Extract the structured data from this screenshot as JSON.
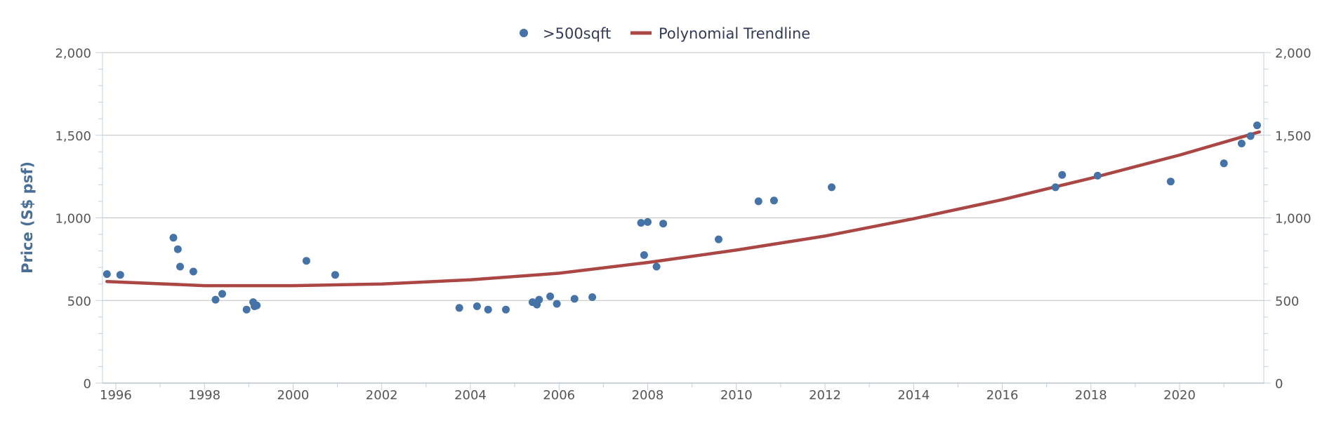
{
  "chart_data": {
    "type": "scatter",
    "title": "",
    "xlabel": "",
    "ylabel": "Price (S$ psf)",
    "xlim": [
      1995.7,
      2021.9
    ],
    "ylim": [
      0,
      2000
    ],
    "y_ticks": [
      0,
      500,
      1000,
      1500,
      2000
    ],
    "y_tick_labels": [
      "0",
      "500",
      "1,000",
      "1,500",
      "2,000"
    ],
    "x_ticks": [
      1996,
      1998,
      2000,
      2002,
      2004,
      2006,
      2008,
      2010,
      2012,
      2014,
      2016,
      2018,
      2020
    ],
    "x_tick_labels": [
      "1996",
      "1998",
      "2000",
      "2002",
      "2004",
      "2006",
      "2008",
      "2010",
      "2012",
      "2014",
      "2016",
      "2018",
      "2020"
    ],
    "secondary_y_axis": true,
    "grid": "horizontal",
    "legend_position": "top-center",
    "colors": {
      "points": "#4572a7",
      "trendline": "#aa4643",
      "axis": "#c0d0e0",
      "grid": "#c0c0c0"
    },
    "series": [
      {
        "name": ">500sqft",
        "kind": "scatter",
        "points": [
          [
            1995.8,
            660
          ],
          [
            1996.1,
            655
          ],
          [
            1997.3,
            880
          ],
          [
            1997.4,
            810
          ],
          [
            1997.45,
            705
          ],
          [
            1997.75,
            675
          ],
          [
            1998.25,
            505
          ],
          [
            1998.4,
            540
          ],
          [
            1998.95,
            445
          ],
          [
            1999.1,
            490
          ],
          [
            1999.13,
            465
          ],
          [
            1999.18,
            470
          ],
          [
            2000.3,
            740
          ],
          [
            2000.95,
            655
          ],
          [
            2003.75,
            455
          ],
          [
            2004.15,
            465
          ],
          [
            2004.4,
            445
          ],
          [
            2004.8,
            445
          ],
          [
            2005.4,
            490
          ],
          [
            2005.5,
            475
          ],
          [
            2005.55,
            505
          ],
          [
            2005.8,
            525
          ],
          [
            2005.95,
            480
          ],
          [
            2006.35,
            510
          ],
          [
            2006.75,
            520
          ],
          [
            2007.85,
            970
          ],
          [
            2007.92,
            775
          ],
          [
            2008.0,
            975
          ],
          [
            2008.2,
            705
          ],
          [
            2008.35,
            965
          ],
          [
            2009.6,
            870
          ],
          [
            2010.5,
            1100
          ],
          [
            2010.85,
            1105
          ],
          [
            2012.15,
            1185
          ],
          [
            2017.2,
            1185
          ],
          [
            2017.35,
            1260
          ],
          [
            2018.15,
            1255
          ],
          [
            2019.8,
            1220
          ],
          [
            2021.0,
            1330
          ],
          [
            2021.4,
            1450
          ],
          [
            2021.6,
            1495
          ],
          [
            2021.75,
            1560
          ]
        ]
      },
      {
        "name": "Polynomial Trendline",
        "kind": "line",
        "points": [
          [
            1995.8,
            615
          ],
          [
            1998,
            590
          ],
          [
            2000,
            590
          ],
          [
            2002,
            600
          ],
          [
            2004,
            625
          ],
          [
            2006,
            665
          ],
          [
            2008,
            730
          ],
          [
            2010,
            805
          ],
          [
            2012,
            890
          ],
          [
            2014,
            995
          ],
          [
            2016,
            1110
          ],
          [
            2018,
            1240
          ],
          [
            2020,
            1380
          ],
          [
            2021.8,
            1520
          ]
        ]
      }
    ]
  }
}
